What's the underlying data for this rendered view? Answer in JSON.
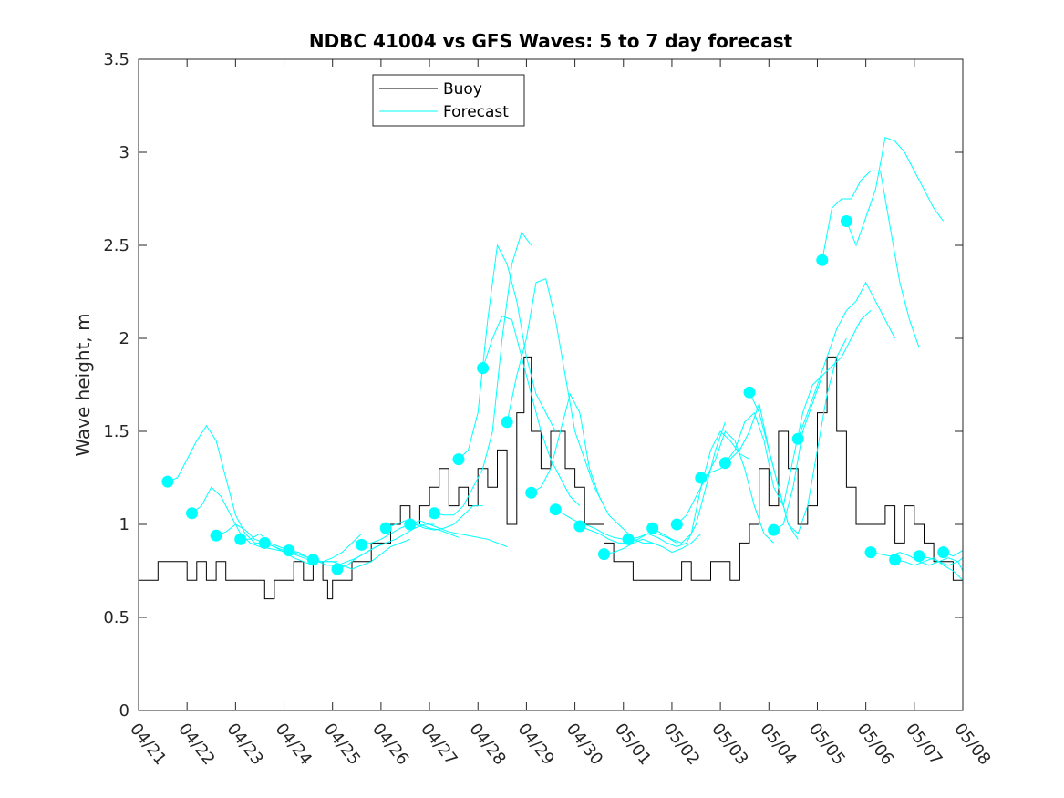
{
  "chart_data": {
    "type": "line",
    "title": "NDBC 41004 vs GFS Waves: 5 to 7 day forecast",
    "xlabel": "",
    "ylabel": "Wave height, m",
    "xlim": [
      0,
      17
    ],
    "ylim": [
      0,
      3.5
    ],
    "x_tick_labels": [
      "04/21",
      "04/22",
      "04/23",
      "04/24",
      "04/25",
      "04/26",
      "04/27",
      "04/28",
      "04/29",
      "04/30",
      "05/01",
      "05/02",
      "05/03",
      "05/04",
      "05/05",
      "05/06",
      "05/07",
      "05/08"
    ],
    "y_ticks": [
      "0",
      "0.5",
      "1",
      "1.5",
      "2",
      "2.5",
      "3",
      "3.5"
    ],
    "grid": false,
    "legend": {
      "placement": "top-left",
      "entries": [
        "Buoy",
        "Forecast"
      ]
    },
    "colors": {
      "buoy": "#000000",
      "forecast": "#00ffff"
    },
    "series": [
      {
        "name": "Buoy",
        "x": [
          0.0,
          0.35,
          0.4,
          0.9,
          1.0,
          1.2,
          1.4,
          1.6,
          1.8,
          2.0,
          2.3,
          2.6,
          2.8,
          3.0,
          3.2,
          3.4,
          3.6,
          3.8,
          3.9,
          4.0,
          4.2,
          4.4,
          4.6,
          4.8,
          5.0,
          5.2,
          5.4,
          5.6,
          5.8,
          6.0,
          6.2,
          6.4,
          6.6,
          6.8,
          7.0,
          7.2,
          7.4,
          7.6,
          7.8,
          7.95,
          8.1,
          8.3,
          8.5,
          8.8,
          9.0,
          9.2,
          9.4,
          9.6,
          9.8,
          10.0,
          10.2,
          10.4,
          10.6,
          10.8,
          11.0,
          11.2,
          11.4,
          11.6,
          11.8,
          12.0,
          12.2,
          12.4,
          12.6,
          12.8,
          13.0,
          13.2,
          13.4,
          13.6,
          13.8,
          14.0,
          14.2,
          14.4,
          14.6,
          14.8,
          15.0,
          15.2,
          15.4,
          15.6,
          15.8,
          16.0,
          16.2,
          16.4,
          16.6,
          16.8,
          17.0
        ],
        "y": [
          0.7,
          0.7,
          0.8,
          0.8,
          0.7,
          0.8,
          0.7,
          0.8,
          0.7,
          0.7,
          0.7,
          0.6,
          0.7,
          0.7,
          0.8,
          0.7,
          0.8,
          0.7,
          0.6,
          0.7,
          0.7,
          0.8,
          0.8,
          0.9,
          0.9,
          1.0,
          1.1,
          1.0,
          1.1,
          1.2,
          1.3,
          1.1,
          1.2,
          1.1,
          1.3,
          1.2,
          1.4,
          1.0,
          1.6,
          1.9,
          1.5,
          1.3,
          1.5,
          1.3,
          1.2,
          1.0,
          1.0,
          0.9,
          0.8,
          0.8,
          0.7,
          0.7,
          0.7,
          0.7,
          0.7,
          0.8,
          0.7,
          0.7,
          0.8,
          0.8,
          0.7,
          0.9,
          1.0,
          1.3,
          1.1,
          1.5,
          1.3,
          1.0,
          1.1,
          1.6,
          1.9,
          1.5,
          1.2,
          1.0,
          1.0,
          1.0,
          1.1,
          0.9,
          1.1,
          1.0,
          0.9,
          0.8,
          0.8,
          0.7,
          0.7
        ]
      },
      {
        "name": "Forecast",
        "x": [
          0.6,
          0.8,
          1.0,
          1.2,
          1.4,
          1.6,
          1.8,
          2.0,
          2.2,
          2.4,
          2.6
        ],
        "y": [
          1.23,
          1.25,
          1.35,
          1.45,
          1.53,
          1.45,
          1.25,
          1.05,
          0.95,
          0.9,
          0.9
        ]
      },
      {
        "name": "",
        "x": [
          1.1,
          1.3,
          1.5,
          1.7,
          1.9,
          2.1,
          2.3,
          2.5,
          2.7,
          2.9,
          3.1
        ],
        "y": [
          1.06,
          1.1,
          1.2,
          1.15,
          1.05,
          0.95,
          0.9,
          0.88,
          0.87,
          0.86,
          0.85
        ]
      },
      {
        "name": "",
        "x": [
          1.6,
          1.8,
          2.0,
          2.2,
          2.4,
          2.6,
          2.8,
          3.0,
          3.2,
          3.4,
          3.6
        ],
        "y": [
          0.94,
          0.96,
          1.0,
          0.97,
          0.92,
          0.9,
          0.88,
          0.85,
          0.82,
          0.8,
          0.78
        ]
      },
      {
        "name": "",
        "x": [
          2.1,
          2.3,
          2.5,
          2.7,
          2.9,
          3.1,
          3.3,
          3.5,
          3.7,
          3.9,
          4.1
        ],
        "y": [
          0.92,
          0.92,
          0.95,
          0.9,
          0.88,
          0.86,
          0.85,
          0.82,
          0.8,
          0.8,
          0.8
        ]
      },
      {
        "name": "",
        "x": [
          2.6,
          2.8,
          3.0,
          3.2,
          3.4,
          3.6,
          3.8,
          4.0,
          4.2,
          4.4,
          4.6
        ],
        "y": [
          0.9,
          0.88,
          0.86,
          0.84,
          0.82,
          0.8,
          0.8,
          0.82,
          0.85,
          0.9,
          0.95
        ]
      },
      {
        "name": "",
        "x": [
          3.1,
          3.3,
          3.5,
          3.7,
          3.9,
          4.1,
          4.3,
          4.5,
          4.7,
          4.9,
          5.1
        ],
        "y": [
          0.86,
          0.84,
          0.82,
          0.8,
          0.78,
          0.78,
          0.8,
          0.82,
          0.85,
          0.88,
          0.9
        ]
      },
      {
        "name": "",
        "x": [
          3.6,
          3.8,
          4.0,
          4.2,
          4.4,
          4.6,
          4.8,
          5.0,
          5.2,
          5.4,
          5.6
        ],
        "y": [
          0.81,
          0.8,
          0.8,
          0.78,
          0.76,
          0.78,
          0.8,
          0.84,
          0.88,
          0.9,
          0.92
        ]
      },
      {
        "name": "",
        "x": [
          4.1,
          4.3,
          4.5,
          4.7,
          4.9,
          5.1,
          5.3,
          5.5,
          5.7,
          5.9,
          6.1
        ],
        "y": [
          0.76,
          0.78,
          0.82,
          0.85,
          0.88,
          0.9,
          0.92,
          0.95,
          0.98,
          1.0,
          1.0
        ]
      },
      {
        "name": "",
        "x": [
          4.6,
          4.8,
          5.0,
          5.2,
          5.4,
          5.6,
          5.8,
          6.0,
          6.2,
          6.4,
          6.6
        ],
        "y": [
          0.89,
          0.9,
          0.92,
          0.95,
          0.98,
          1.0,
          1.0,
          0.98,
          0.97,
          0.95,
          0.93
        ]
      },
      {
        "name": "",
        "x": [
          5.1,
          5.3,
          5.5,
          5.7,
          5.9,
          6.1,
          6.3,
          6.5,
          6.7,
          6.9,
          7.1
        ],
        "y": [
          0.98,
          1.0,
          1.02,
          1.0,
          0.98,
          0.97,
          0.98,
          1.0,
          1.05,
          1.1,
          1.1
        ]
      },
      {
        "name": "",
        "x": [
          5.6,
          5.8,
          6.0,
          6.2,
          6.4,
          6.6,
          6.8,
          7.0,
          7.2,
          7.4,
          7.6
        ],
        "y": [
          1.0,
          1.02,
          1.0,
          0.98,
          0.96,
          0.95,
          0.94,
          0.93,
          0.92,
          0.9,
          0.88
        ]
      },
      {
        "name": "",
        "x": [
          6.1,
          6.3,
          6.5,
          6.7,
          6.9,
          7.1,
          7.3,
          7.5,
          7.7,
          7.9,
          8.1
        ],
        "y": [
          1.06,
          1.05,
          1.05,
          1.1,
          1.2,
          1.3,
          1.5,
          2.0,
          2.4,
          2.57,
          2.5
        ]
      },
      {
        "name": "",
        "x": [
          6.6,
          6.8,
          7.0,
          7.2,
          7.4,
          7.6,
          7.8,
          8.0,
          8.2,
          8.4,
          8.6
        ],
        "y": [
          1.35,
          1.4,
          1.6,
          2.1,
          2.5,
          2.4,
          2.2,
          1.9,
          1.7,
          1.6,
          1.5
        ]
      },
      {
        "name": "",
        "x": [
          7.1,
          7.3,
          7.5,
          7.7,
          7.9,
          8.1,
          8.3,
          8.5,
          8.7,
          8.9,
          9.1
        ],
        "y": [
          1.84,
          2.0,
          2.12,
          2.1,
          1.9,
          1.7,
          1.5,
          1.35,
          1.25,
          1.15,
          1.1
        ]
      },
      {
        "name": "",
        "x": [
          7.6,
          7.8,
          8.0,
          8.2,
          8.4,
          8.6,
          8.8,
          9.0,
          9.2,
          9.4,
          9.6
        ],
        "y": [
          1.55,
          1.8,
          2.0,
          2.3,
          2.32,
          2.1,
          1.8,
          1.5,
          1.35,
          1.2,
          1.1
        ]
      },
      {
        "name": "",
        "x": [
          8.1,
          8.3,
          8.5,
          8.7,
          8.9,
          9.1,
          9.3,
          9.5,
          9.7,
          9.9,
          10.1
        ],
        "y": [
          1.17,
          1.2,
          1.3,
          1.5,
          1.7,
          1.6,
          1.3,
          1.15,
          1.05,
          1.0,
          0.95
        ]
      },
      {
        "name": "",
        "x": [
          8.6,
          8.8,
          9.0,
          9.2,
          9.4,
          9.6,
          9.8,
          10.0,
          10.2,
          10.4,
          10.6
        ],
        "y": [
          1.08,
          1.05,
          1.02,
          1.0,
          0.98,
          0.95,
          0.93,
          0.92,
          0.92,
          0.9,
          0.9
        ]
      },
      {
        "name": "",
        "x": [
          9.1,
          9.3,
          9.5,
          9.7,
          9.9,
          10.1,
          10.3,
          10.5,
          10.7,
          10.9,
          11.1
        ],
        "y": [
          0.99,
          0.97,
          0.95,
          0.92,
          0.9,
          0.9,
          0.92,
          0.95,
          0.95,
          0.93,
          0.9
        ]
      },
      {
        "name": "",
        "x": [
          9.6,
          9.8,
          10.0,
          10.2,
          10.4,
          10.6,
          10.8,
          11.0,
          11.2,
          11.4,
          11.6
        ],
        "y": [
          0.84,
          0.85,
          0.87,
          0.9,
          0.92,
          0.9,
          0.88,
          0.85,
          0.87,
          0.9,
          0.95
        ]
      },
      {
        "name": "",
        "x": [
          10.1,
          10.3,
          10.5,
          10.7,
          10.9,
          11.1,
          11.3,
          11.5,
          11.7,
          11.9,
          12.1
        ],
        "y": [
          0.92,
          0.93,
          0.95,
          0.93,
          0.9,
          0.88,
          0.9,
          1.0,
          1.2,
          1.4,
          1.55
        ]
      },
      {
        "name": "",
        "x": [
          10.6,
          10.8,
          11.0,
          11.2,
          11.4,
          11.6,
          11.8,
          12.0,
          12.2,
          12.4,
          12.6
        ],
        "y": [
          0.98,
          0.95,
          0.92,
          0.9,
          0.95,
          1.2,
          1.4,
          1.5,
          1.45,
          1.38,
          1.35
        ]
      },
      {
        "name": "",
        "x": [
          11.1,
          11.3,
          11.5,
          11.7,
          11.9,
          12.1,
          12.3,
          12.5,
          12.7,
          12.9,
          13.1
        ],
        "y": [
          1.0,
          1.05,
          1.15,
          1.25,
          1.35,
          1.5,
          1.45,
          1.3,
          1.1,
          0.95,
          0.9
        ]
      },
      {
        "name": "",
        "x": [
          11.6,
          11.8,
          12.0,
          12.2,
          12.4,
          12.6,
          12.8,
          13.0,
          13.2,
          13.4,
          13.6
        ],
        "y": [
          1.25,
          1.28,
          1.3,
          1.35,
          1.4,
          1.5,
          1.65,
          1.4,
          1.2,
          1.0,
          0.92
        ]
      },
      {
        "name": "",
        "x": [
          12.1,
          12.3,
          12.5,
          12.7,
          12.9,
          13.1,
          13.3,
          13.5,
          13.7,
          13.9,
          14.1
        ],
        "y": [
          1.33,
          1.4,
          1.55,
          1.6,
          1.45,
          1.2,
          1.1,
          1.35,
          1.6,
          1.75,
          1.8
        ]
      },
      {
        "name": "",
        "x": [
          12.6,
          12.8,
          13.0,
          13.2,
          13.4,
          13.6,
          13.8,
          14.0,
          14.2,
          14.4,
          14.6
        ],
        "y": [
          1.71,
          1.6,
          1.4,
          1.2,
          1.0,
          0.95,
          1.1,
          1.4,
          1.7,
          1.9,
          2.0
        ]
      },
      {
        "name": "",
        "x": [
          13.1,
          13.3,
          13.5,
          13.7,
          13.9,
          14.1,
          14.3,
          14.5,
          14.7,
          14.9,
          15.1
        ],
        "y": [
          0.97,
          1.0,
          1.2,
          1.5,
          1.65,
          1.8,
          1.85,
          1.9,
          2.0,
          2.1,
          2.15
        ]
      },
      {
        "name": "",
        "x": [
          13.6,
          13.8,
          14.0,
          14.2,
          14.4,
          14.6,
          14.8,
          15.0,
          15.2,
          15.4,
          15.6
        ],
        "y": [
          1.46,
          1.6,
          1.75,
          1.9,
          2.05,
          2.15,
          2.2,
          2.3,
          2.2,
          2.1,
          2.0
        ]
      },
      {
        "name": "",
        "x": [
          14.1,
          14.3,
          14.5,
          14.7,
          14.9,
          15.1,
          15.3,
          15.5,
          15.7,
          15.9,
          16.1
        ],
        "y": [
          2.42,
          2.7,
          2.75,
          2.75,
          2.85,
          2.9,
          2.9,
          2.6,
          2.3,
          2.1,
          1.95
        ]
      },
      {
        "name": "",
        "x": [
          14.6,
          14.8,
          15.0,
          15.2,
          15.4,
          15.6,
          15.8,
          16.0,
          16.2,
          16.4,
          16.6
        ],
        "y": [
          2.63,
          2.5,
          2.65,
          2.8,
          3.08,
          3.06,
          3.0,
          2.9,
          2.8,
          2.7,
          2.63
        ]
      },
      {
        "name": "",
        "x": [
          15.1,
          15.3,
          15.5,
          15.7,
          15.9,
          16.1,
          16.3,
          16.5,
          16.7,
          16.9,
          17.0
        ],
        "y": [
          0.85,
          0.84,
          0.83,
          0.85,
          0.83,
          0.8,
          0.78,
          0.8,
          0.82,
          0.8,
          0.75
        ]
      },
      {
        "name": "",
        "x": [
          15.6,
          15.8,
          16.0,
          16.2,
          16.4,
          16.6,
          16.8,
          17.0
        ],
        "y": [
          0.81,
          0.8,
          0.78,
          0.8,
          0.82,
          0.78,
          0.75,
          0.7
        ]
      },
      {
        "name": "",
        "x": [
          16.1,
          16.3,
          16.5,
          16.7,
          16.9,
          17.0
        ],
        "y": [
          0.83,
          0.82,
          0.8,
          0.78,
          0.8,
          0.82
        ]
      },
      {
        "name": "",
        "x": [
          16.6,
          16.8,
          17.0
        ],
        "y": [
          0.85,
          0.83,
          0.86
        ]
      }
    ]
  }
}
